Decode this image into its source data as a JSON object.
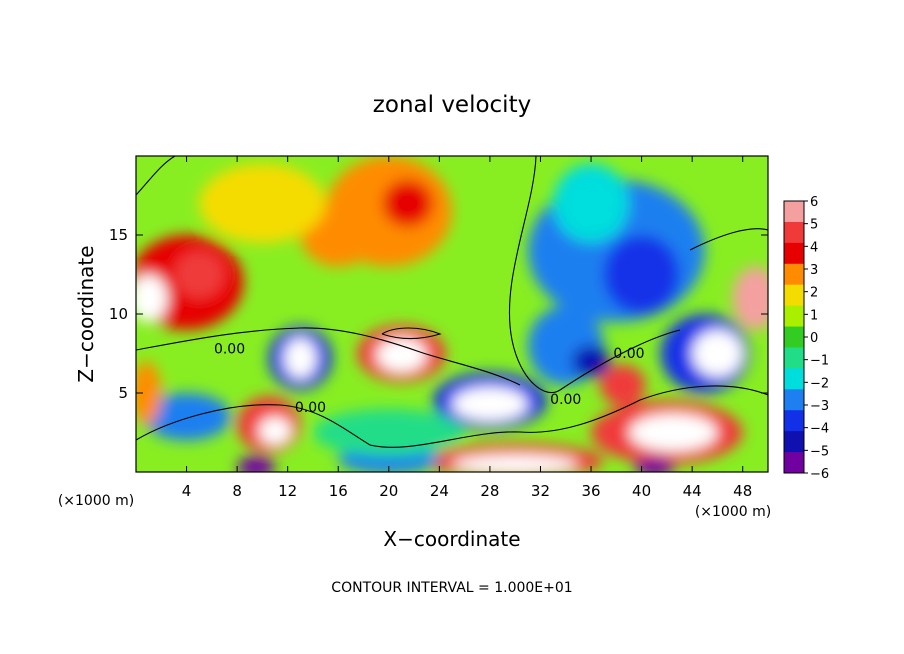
{
  "chart_data": {
    "type": "heatmap",
    "title": "zonal velocity",
    "xlabel": "X−coordinate",
    "ylabel": "Z−coordinate",
    "x_unit": "(×1000 m)",
    "x_unit_right": "(×1000 m)",
    "footer": "CONTOUR INTERVAL = 1.000E+01",
    "xlim": [
      0,
      50
    ],
    "ylim": [
      0,
      20
    ],
    "x_ticks": [
      4,
      8,
      12,
      16,
      20,
      24,
      28,
      32,
      36,
      40,
      44,
      48
    ],
    "y_ticks": [
      5,
      10,
      15
    ],
    "colorbar": {
      "levels": [
        6,
        5,
        4,
        3,
        2,
        1,
        0,
        -1,
        -2,
        -3,
        -4,
        -5,
        -6
      ],
      "labels": [
        "6",
        "5",
        "4",
        "3",
        "2",
        "1",
        "0",
        "−1",
        "−2",
        "−3",
        "−4",
        "−5",
        "−6"
      ],
      "colors": [
        "#f4a0a0",
        "#f03a3a",
        "#e60000",
        "#ff8c00",
        "#f5dc00",
        "#aaee00",
        "#33cc22",
        "#22dd88",
        "#00dddd",
        "#1e7ff0",
        "#1230e8",
        "#1010b0",
        "#7000a0"
      ]
    },
    "contour_labels": [
      {
        "text": "0.00",
        "x": 7.4,
        "y": 7.5
      },
      {
        "text": "0.00",
        "x": 13.8,
        "y": 3.8
      },
      {
        "text": "0.00",
        "x": 34.0,
        "y": 4.3
      },
      {
        "text": "0.00",
        "x": 39.0,
        "y": 7.2
      }
    ],
    "field_blobs": [
      {
        "x": 20,
        "y": 16.5,
        "rx": 5,
        "ry": 3.5,
        "v": 3
      },
      {
        "x": 21.5,
        "y": 17,
        "rx": 2,
        "ry": 1.5,
        "v": 4
      },
      {
        "x": 16,
        "y": 15,
        "rx": 3,
        "ry": 2,
        "v": 3
      },
      {
        "x": 4,
        "y": 12,
        "rx": 4.5,
        "ry": 3,
        "v": 3.5
      },
      {
        "x": 5,
        "y": 12.5,
        "rx": 2,
        "ry": 1.5,
        "v": 4.5
      },
      {
        "x": 1,
        "y": 11,
        "rx": 1.5,
        "ry": 1.5,
        "v": 6.5
      },
      {
        "x": 49,
        "y": 11,
        "rx": 1.8,
        "ry": 2,
        "v": 6
      },
      {
        "x": 10,
        "y": 17,
        "rx": 5,
        "ry": 2.5,
        "v": 1.5
      },
      {
        "x": 38,
        "y": 14,
        "rx": 7,
        "ry": 4.5,
        "v": -3
      },
      {
        "x": 40,
        "y": 12.5,
        "rx": 3,
        "ry": 2.5,
        "v": -4.5
      },
      {
        "x": 36,
        "y": 17,
        "rx": 3,
        "ry": 2.5,
        "v": -2.5
      },
      {
        "x": 34,
        "y": 8,
        "rx": 3,
        "ry": 2.5,
        "v": -3
      },
      {
        "x": 36,
        "y": 7,
        "rx": 1.5,
        "ry": 1,
        "v": -5
      },
      {
        "x": 45,
        "y": 7.5,
        "rx": 3.5,
        "ry": 2.5,
        "v": -4.5
      },
      {
        "x": 46,
        "y": 7.5,
        "rx": 2,
        "ry": 1.5,
        "v": -7
      },
      {
        "x": 13,
        "y": 7.2,
        "rx": 2.5,
        "ry": 2,
        "v": -4.5
      },
      {
        "x": 13,
        "y": 7.2,
        "rx": 1.3,
        "ry": 1.3,
        "v": -7
      },
      {
        "x": 21,
        "y": 7.5,
        "rx": 3.5,
        "ry": 1.8,
        "v": 4.5
      },
      {
        "x": 21,
        "y": 7.4,
        "rx": 2,
        "ry": 1.1,
        "v": 7
      },
      {
        "x": 28,
        "y": 4.5,
        "rx": 4.5,
        "ry": 1.8,
        "v": -4.5
      },
      {
        "x": 28,
        "y": 4.3,
        "rx": 3,
        "ry": 1.1,
        "v": -7
      },
      {
        "x": 4,
        "y": 3.5,
        "rx": 3.5,
        "ry": 1.5,
        "v": -3.5
      },
      {
        "x": 10.5,
        "y": 3,
        "rx": 2.5,
        "ry": 1.8,
        "v": 4.5
      },
      {
        "x": 11,
        "y": 2.6,
        "rx": 1.3,
        "ry": 0.9,
        "v": 6.5
      },
      {
        "x": 42,
        "y": 2.5,
        "rx": 6,
        "ry": 2,
        "v": 5
      },
      {
        "x": 42.5,
        "y": 2.5,
        "rx": 3.5,
        "ry": 1.2,
        "v": 7
      },
      {
        "x": 38.5,
        "y": 5.5,
        "rx": 1.8,
        "ry": 1.3,
        "v": 5
      },
      {
        "x": 30,
        "y": 0.7,
        "rx": 7,
        "ry": 1.1,
        "v": 5
      },
      {
        "x": 30,
        "y": 0.5,
        "rx": 5,
        "ry": 0.6,
        "v": 7
      },
      {
        "x": 20,
        "y": 0.8,
        "rx": 4,
        "ry": 0.9,
        "v": -3
      },
      {
        "x": 9.5,
        "y": 0.3,
        "rx": 1.5,
        "ry": 0.7,
        "v": -6
      },
      {
        "x": 41,
        "y": 0.3,
        "rx": 1.6,
        "ry": 0.6,
        "v": -6
      },
      {
        "x": 0.8,
        "y": 5,
        "rx": 1.2,
        "ry": 2,
        "v": 2.5
      },
      {
        "x": 20,
        "y": 2.5,
        "rx": 6,
        "ry": 1.5,
        "v": -1.5
      }
    ]
  }
}
